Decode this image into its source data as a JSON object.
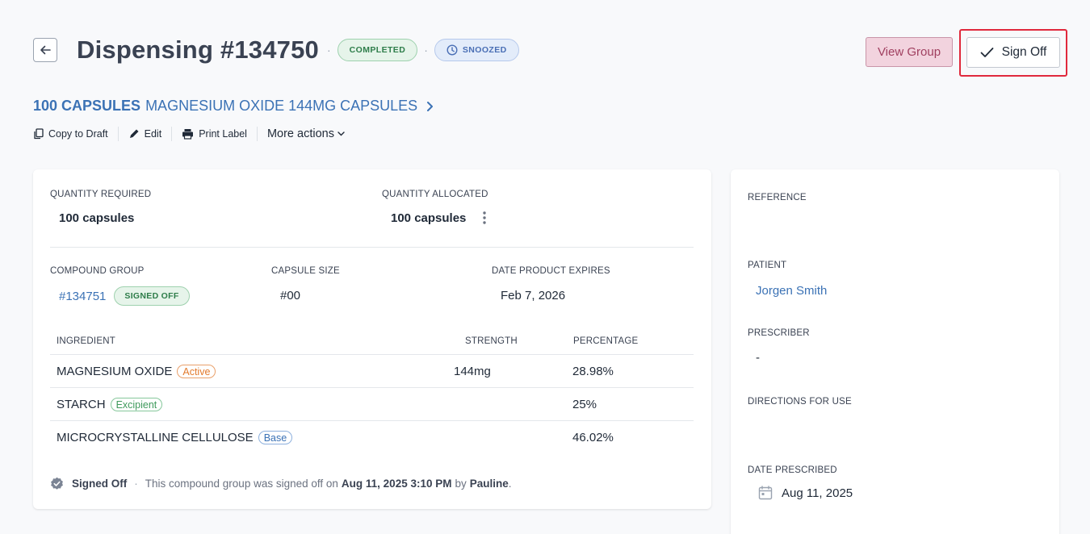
{
  "header": {
    "title": "Dispensing #134750",
    "status_badge": "COMPLETED",
    "snooze_badge": "SNOOZED"
  },
  "toolbar": {
    "view_group_label": "View Group",
    "sign_off_label": "Sign Off"
  },
  "product": {
    "quantity_text": "100 CAPSULES",
    "name_text": "MAGNESIUM OXIDE 144MG CAPSULES"
  },
  "actions": {
    "copy_to_draft": "Copy to Draft",
    "edit": "Edit",
    "print_label": "Print Label",
    "more_actions": "More actions"
  },
  "details": {
    "quantity_required_label": "QUANTITY REQUIRED",
    "quantity_required_value": "100 capsules",
    "quantity_allocated_label": "QUANTITY ALLOCATED",
    "quantity_allocated_value": "100 capsules",
    "compound_group_label": "COMPOUND GROUP",
    "compound_group_value": "#134751",
    "compound_group_badge": "SIGNED OFF",
    "capsule_size_label": "CAPSULE SIZE",
    "capsule_size_value": "#00",
    "expiry_label": "DATE PRODUCT EXPIRES",
    "expiry_value": "Feb 7, 2026"
  },
  "ingredients": {
    "headers": {
      "ingredient": "INGREDIENT",
      "strength": "STRENGTH",
      "percentage": "PERCENTAGE"
    },
    "rows": [
      {
        "name": "MAGNESIUM OXIDE",
        "role": "Active",
        "strength": "144mg",
        "percentage": "28.98%"
      },
      {
        "name": "STARCH",
        "role": "Excipient",
        "strength": "",
        "percentage": "25%"
      },
      {
        "name": "MICROCRYSTALLINE CELLULOSE",
        "role": "Base",
        "strength": "",
        "percentage": "46.02%"
      }
    ]
  },
  "footer": {
    "signed_label": "Signed Off",
    "text_before": "This compound group was signed off on",
    "datetime": "Aug 11, 2025 3:10 PM",
    "by_text": "by",
    "user": "Pauline",
    "end": "."
  },
  "sidebar": {
    "reference_label": "REFERENCE",
    "patient_label": "PATIENT",
    "patient_value": "Jorgen Smith",
    "prescriber_label": "PRESCRIBER",
    "prescriber_value": "-",
    "directions_label": "DIRECTIONS FOR USE",
    "date_prescribed_label": "DATE PRESCRIBED",
    "date_prescribed_value": "Aug 11, 2025"
  },
  "colors": {
    "accent_blue": "#3b72b5",
    "success_green": "#2e7d4a",
    "highlight_red": "#e0293c",
    "view_group_pink": "#f2d3de"
  },
  "icons": {
    "back": "arrow-left-icon",
    "snoozed": "clock-icon",
    "sign_off": "check-icon",
    "copy": "copy-icon",
    "edit": "pencil-icon",
    "print": "printer-icon",
    "more": "chevron-down-icon",
    "kebab": "kebab-menu-icon",
    "verified": "verified-badge-icon",
    "calendar": "calendar-icon"
  }
}
